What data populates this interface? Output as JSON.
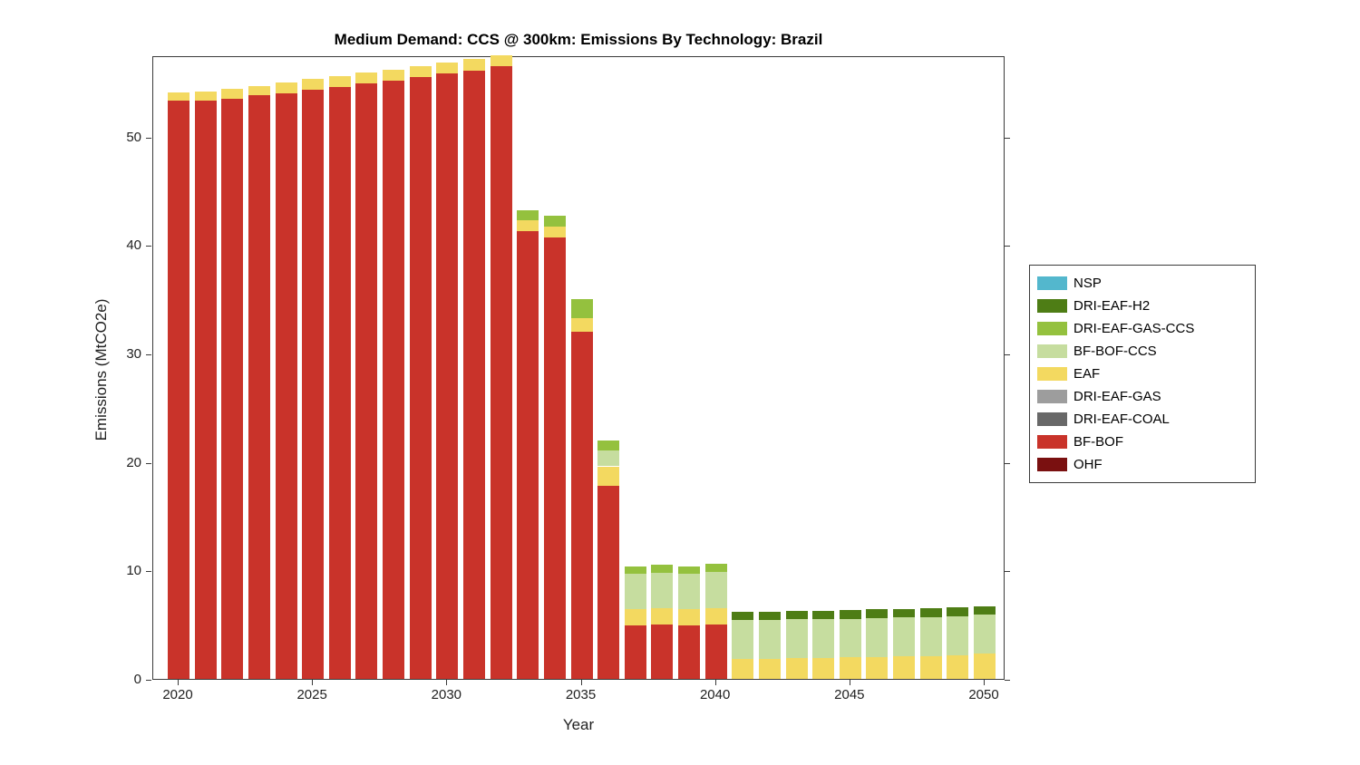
{
  "title": "Medium Demand: CCS @ 300km: Emissions By Technology: Brazil",
  "xlabel": "Year",
  "ylabel": "Emissions (MtCO2e)",
  "legend": [
    {
      "label": "NSP",
      "color": "#53b7cd"
    },
    {
      "label": "DRI-EAF-H2",
      "color": "#4e7d15"
    },
    {
      "label": "DRI-EAF-GAS-CCS",
      "color": "#94c13e"
    },
    {
      "label": "BF-BOF-CCS",
      "color": "#c6dd9f"
    },
    {
      "label": "EAF",
      "color": "#f3d960"
    },
    {
      "label": "DRI-EAF-GAS",
      "color": "#9d9d9d"
    },
    {
      "label": "DRI-EAF-COAL",
      "color": "#686868"
    },
    {
      "label": "BF-BOF",
      "color": "#c9332a"
    },
    {
      "label": "OHF",
      "color": "#7a1010"
    }
  ],
  "chart_data": {
    "type": "bar",
    "stacked": true,
    "title": "Medium Demand: CCS @ 300km: Emissions By Technology: Brazil",
    "xlabel": "Year",
    "ylabel": "Emissions (MtCO2e)",
    "ylim": [
      0,
      57.5
    ],
    "yticks": [
      0,
      10,
      20,
      30,
      40,
      50
    ],
    "xticks": [
      2020,
      2025,
      2030,
      2035,
      2040,
      2045,
      2050
    ],
    "grid": false,
    "legend_position": "right-outside",
    "x": [
      2020,
      2021,
      2022,
      2023,
      2024,
      2025,
      2026,
      2027,
      2028,
      2029,
      2030,
      2031,
      2032,
      2033,
      2034,
      2035,
      2036,
      2037,
      2038,
      2039,
      2040,
      2041,
      2042,
      2043,
      2044,
      2045,
      2046,
      2047,
      2048,
      2049,
      2050
    ],
    "series": [
      {
        "name": "OHF",
        "color": "#7a1010",
        "values": [
          0,
          0,
          0,
          0,
          0,
          0,
          0,
          0,
          0,
          0,
          0,
          0,
          0,
          0,
          0,
          0,
          0,
          0,
          0,
          0,
          0,
          0,
          0,
          0,
          0,
          0,
          0,
          0,
          0,
          0,
          0
        ]
      },
      {
        "name": "BF-BOF",
        "color": "#c9332a",
        "values": [
          53.3,
          53.3,
          53.5,
          53.8,
          54.0,
          54.3,
          54.6,
          54.9,
          55.2,
          55.5,
          55.8,
          56.1,
          56.5,
          41.3,
          40.7,
          32.0,
          17.8,
          4.9,
          5.0,
          4.9,
          5.0,
          0,
          0,
          0,
          0,
          0,
          0,
          0,
          0,
          0,
          0
        ]
      },
      {
        "name": "DRI-EAF-COAL",
        "color": "#686868",
        "values": [
          0,
          0,
          0,
          0,
          0,
          0,
          0,
          0,
          0,
          0,
          0,
          0,
          0,
          0,
          0,
          0,
          0,
          0,
          0,
          0,
          0,
          0,
          0,
          0,
          0,
          0,
          0,
          0,
          0,
          0,
          0
        ]
      },
      {
        "name": "DRI-EAF-GAS",
        "color": "#9d9d9d",
        "values": [
          0,
          0,
          0,
          0,
          0,
          0,
          0,
          0,
          0,
          0,
          0,
          0,
          0,
          0,
          0,
          0,
          0,
          0,
          0,
          0,
          0,
          0,
          0,
          0,
          0,
          0,
          0,
          0,
          0,
          0,
          0
        ]
      },
      {
        "name": "EAF",
        "color": "#f3d960",
        "values": [
          0.8,
          0.9,
          0.9,
          0.9,
          1.0,
          1.0,
          1.0,
          1.0,
          1.0,
          1.0,
          1.0,
          1.1,
          1.0,
          1.0,
          1.0,
          1.3,
          1.8,
          1.5,
          1.5,
          1.5,
          1.5,
          1.8,
          1.85,
          1.9,
          1.95,
          2.0,
          2.0,
          2.05,
          2.1,
          2.15,
          2.3
        ]
      },
      {
        "name": "BF-BOF-CCS",
        "color": "#c6dd9f",
        "values": [
          0,
          0,
          0,
          0,
          0,
          0,
          0,
          0,
          0,
          0,
          0,
          0,
          0,
          0,
          0,
          0,
          1.5,
          3.3,
          3.3,
          3.3,
          3.4,
          3.6,
          3.55,
          3.6,
          3.55,
          3.55,
          3.6,
          3.6,
          3.6,
          3.65,
          3.6
        ]
      },
      {
        "name": "DRI-EAF-GAS-CCS",
        "color": "#94c13e",
        "values": [
          0,
          0,
          0,
          0,
          0,
          0,
          0,
          0,
          0,
          0,
          0,
          0,
          0,
          0.9,
          1.0,
          1.7,
          0.9,
          0.7,
          0.7,
          0.7,
          0.7,
          0,
          0,
          0,
          0,
          0,
          0,
          0,
          0,
          0,
          0
        ]
      },
      {
        "name": "DRI-EAF-H2",
        "color": "#4e7d15",
        "values": [
          0,
          0,
          0,
          0,
          0,
          0,
          0,
          0,
          0,
          0,
          0,
          0,
          0,
          0,
          0,
          0,
          0,
          0,
          0,
          0,
          0,
          0.8,
          0.8,
          0.8,
          0.8,
          0.8,
          0.8,
          0.8,
          0.8,
          0.8,
          0.8
        ]
      },
      {
        "name": "NSP",
        "color": "#53b7cd",
        "values": [
          0,
          0,
          0,
          0,
          0,
          0,
          0,
          0,
          0,
          0,
          0,
          0,
          0,
          0,
          0,
          0,
          0,
          0,
          0,
          0,
          0,
          0,
          0,
          0,
          0,
          0,
          0,
          0,
          0,
          0,
          0
        ]
      }
    ]
  }
}
